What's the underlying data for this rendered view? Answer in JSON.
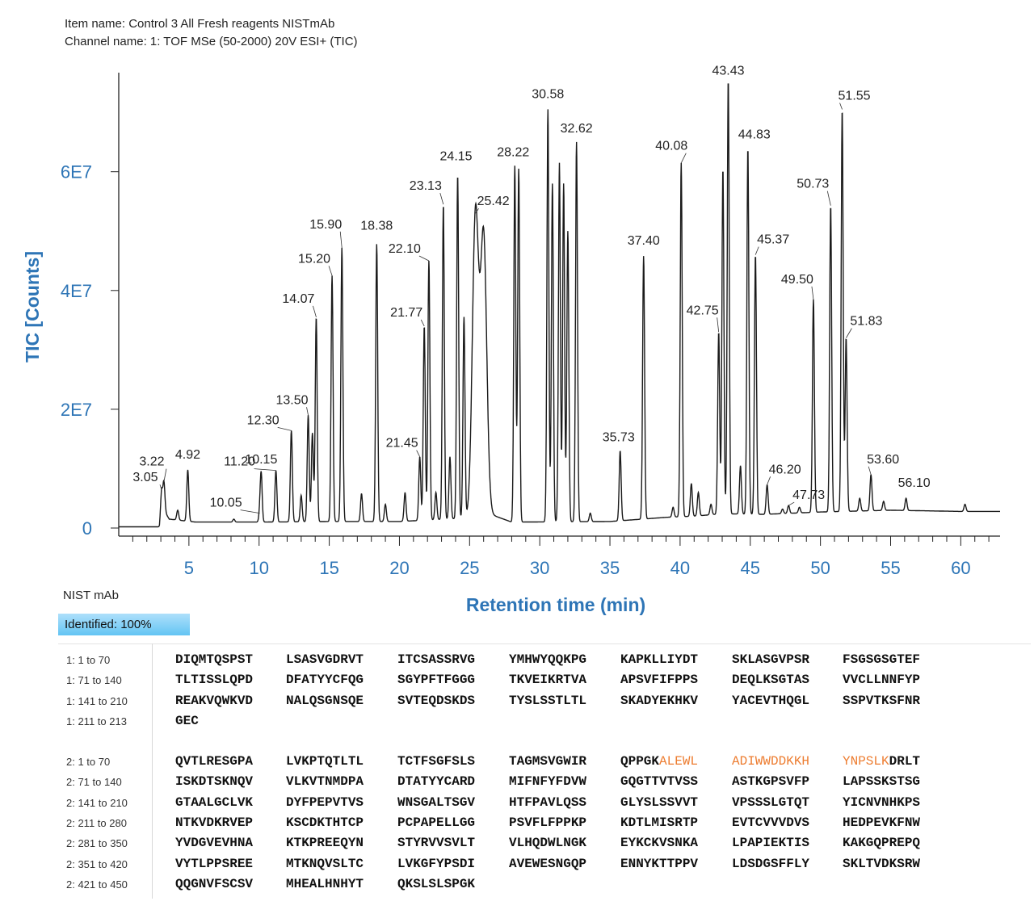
{
  "header": {
    "item_name": "Item name: Control 3 All Fresh reagents NISTmAb",
    "channel_name": "Channel name: 1: TOF MSe (50-2000) 20V ESI+ (TIC)"
  },
  "chart_data": {
    "type": "line",
    "title": "",
    "xlabel": "Retention time (min)",
    "ylabel": "TIC [Counts]",
    "xlim": [
      0,
      62.8
    ],
    "ylim": [
      0,
      76000000
    ],
    "x_ticks": [
      5,
      10,
      15,
      20,
      25,
      30,
      35,
      40,
      45,
      50,
      55,
      60
    ],
    "y_ticks": [
      {
        "value": 0,
        "label": "0"
      },
      {
        "value": 20000000,
        "label": "2E7"
      },
      {
        "value": 40000000,
        "label": "4E7"
      },
      {
        "value": 60000000,
        "label": "6E7"
      }
    ],
    "baseline": [
      [
        0,
        200000
      ],
      [
        2.9,
        200000
      ],
      [
        3.05,
        3600000
      ],
      [
        3.6,
        1500000
      ],
      [
        5.5,
        1000000
      ],
      [
        10,
        1000000
      ],
      [
        15,
        1100000
      ],
      [
        20,
        1100000
      ],
      [
        25,
        1700000
      ],
      [
        26.5,
        2300000
      ],
      [
        28,
        1000000
      ],
      [
        35,
        1100000
      ],
      [
        39,
        1800000
      ],
      [
        41,
        2000000
      ],
      [
        43,
        2400000
      ],
      [
        46,
        2300000
      ],
      [
        50,
        2700000
      ],
      [
        55,
        3000000
      ],
      [
        60,
        2800000
      ],
      [
        62.8,
        2800000
      ]
    ],
    "peaks": [
      {
        "rt": 3.05,
        "counts": 6500000,
        "label": "3.05"
      },
      {
        "rt": 3.22,
        "counts": 7800000,
        "label": "3.22"
      },
      {
        "rt": 4.2,
        "counts": 3000000,
        "label": ""
      },
      {
        "rt": 4.92,
        "counts": 9800000,
        "label": "4.92"
      },
      {
        "rt": 8.2,
        "counts": 1500000,
        "label": ""
      },
      {
        "rt": 10.05,
        "counts": 2500000,
        "label": "10.05"
      },
      {
        "rt": 10.15,
        "counts": 9000000,
        "label": "10.15"
      },
      {
        "rt": 11.2,
        "counts": 9700000,
        "label": "11.20"
      },
      {
        "rt": 12.3,
        "counts": 16400000,
        "label": "12.30"
      },
      {
        "rt": 13.0,
        "counts": 5500000,
        "label": ""
      },
      {
        "rt": 13.5,
        "counts": 19000000,
        "label": "13.50"
      },
      {
        "rt": 13.8,
        "counts": 16000000,
        "label": ""
      },
      {
        "rt": 14.07,
        "counts": 35500000,
        "label": "14.07"
      },
      {
        "rt": 15.2,
        "counts": 42500000,
        "label": "15.20"
      },
      {
        "rt": 15.9,
        "counts": 47200000,
        "label": "15.90"
      },
      {
        "rt": 17.3,
        "counts": 5800000,
        "label": ""
      },
      {
        "rt": 18.38,
        "counts": 47800000,
        "label": "18.38"
      },
      {
        "rt": 19.0,
        "counts": 4000000,
        "label": ""
      },
      {
        "rt": 20.4,
        "counts": 6000000,
        "label": ""
      },
      {
        "rt": 21.45,
        "counts": 12000000,
        "label": "21.45"
      },
      {
        "rt": 21.77,
        "counts": 34000000,
        "label": "21.77"
      },
      {
        "rt": 22.1,
        "counts": 45000000,
        "label": "22.10"
      },
      {
        "rt": 22.6,
        "counts": 6000000,
        "label": ""
      },
      {
        "rt": 23.13,
        "counts": 54500000,
        "label": "23.13"
      },
      {
        "rt": 23.6,
        "counts": 12000000,
        "label": ""
      },
      {
        "rt": 24.15,
        "counts": 59500000,
        "label": "24.15"
      },
      {
        "rt": 24.6,
        "counts": 35500000,
        "label": ""
      },
      {
        "rt": 25.42,
        "counts": 53000000,
        "label": "25.42"
      },
      {
        "rt": 26.0,
        "counts": 49000000,
        "label": ""
      },
      {
        "rt": 28.22,
        "counts": 61000000,
        "label": "28.22"
      },
      {
        "rt": 28.5,
        "counts": 60500000,
        "label": ""
      },
      {
        "rt": 30.58,
        "counts": 70500000,
        "label": "30.58"
      },
      {
        "rt": 30.9,
        "counts": 58000000,
        "label": ""
      },
      {
        "rt": 31.4,
        "counts": 61500000,
        "label": ""
      },
      {
        "rt": 31.7,
        "counts": 58000000,
        "label": ""
      },
      {
        "rt": 32.0,
        "counts": 50000000,
        "label": ""
      },
      {
        "rt": 32.62,
        "counts": 65000000,
        "label": "32.62"
      },
      {
        "rt": 33.6,
        "counts": 2500000,
        "label": ""
      },
      {
        "rt": 35.73,
        "counts": 13000000,
        "label": "35.73"
      },
      {
        "rt": 37.4,
        "counts": 45800000,
        "label": "37.40"
      },
      {
        "rt": 39.5,
        "counts": 3500000,
        "label": ""
      },
      {
        "rt": 40.08,
        "counts": 61500000,
        "label": "40.08"
      },
      {
        "rt": 40.8,
        "counts": 7500000,
        "label": ""
      },
      {
        "rt": 41.3,
        "counts": 6000000,
        "label": ""
      },
      {
        "rt": 42.2,
        "counts": 4000000,
        "label": ""
      },
      {
        "rt": 42.75,
        "counts": 33000000,
        "label": "42.75"
      },
      {
        "rt": 43.05,
        "counts": 60500000,
        "label": ""
      },
      {
        "rt": 43.43,
        "counts": 75500000,
        "label": "43.43"
      },
      {
        "rt": 44.3,
        "counts": 10500000,
        "label": ""
      },
      {
        "rt": 44.83,
        "counts": 64000000,
        "label": "44.83"
      },
      {
        "rt": 45.37,
        "counts": 46000000,
        "label": "45.37"
      },
      {
        "rt": 46.2,
        "counts": 7300000,
        "label": "46.20"
      },
      {
        "rt": 47.3,
        "counts": 3200000,
        "label": ""
      },
      {
        "rt": 47.73,
        "counts": 3800000,
        "label": "47.73"
      },
      {
        "rt": 48.5,
        "counts": 3500000,
        "label": ""
      },
      {
        "rt": 49.5,
        "counts": 38500000,
        "label": "49.50"
      },
      {
        "rt": 50.73,
        "counts": 54300000,
        "label": "50.73"
      },
      {
        "rt": 51.55,
        "counts": 70500000,
        "label": "51.55"
      },
      {
        "rt": 51.83,
        "counts": 32000000,
        "label": "51.83"
      },
      {
        "rt": 52.8,
        "counts": 5000000,
        "label": ""
      },
      {
        "rt": 53.6,
        "counts": 9000000,
        "label": "53.60"
      },
      {
        "rt": 54.5,
        "counts": 4500000,
        "label": ""
      },
      {
        "rt": 56.1,
        "counts": 5000000,
        "label": "56.10"
      },
      {
        "rt": 60.3,
        "counts": 4000000,
        "label": ""
      }
    ]
  },
  "sequence": {
    "title": "NIST mAb",
    "identified": "Identified: 100%",
    "chain1": [
      {
        "label": "1: 1 to 70",
        "segments": [
          {
            "t": "DIQMTQSPST"
          },
          {
            "t": "LSASVGDRVT"
          },
          {
            "t": "ITCSASSRVG"
          },
          {
            "t": "YMHWYQQKPG"
          },
          {
            "t": "KAPKLLIYDT"
          },
          {
            "t": "SKLASGVPSR"
          },
          {
            "t": "FSGSGSGTEF"
          }
        ]
      },
      {
        "label": "1: 71 to 140",
        "segments": [
          {
            "t": "TLTISSLQPD"
          },
          {
            "t": "DFATYYCFQG"
          },
          {
            "t": "SGYPFTFGGG"
          },
          {
            "t": "TKVEIKRTVA"
          },
          {
            "t": "APSVFIFPPS"
          },
          {
            "t": "DEQLKSGTAS"
          },
          {
            "t": "VVCLLNNFYP"
          }
        ]
      },
      {
        "label": "1: 141 to 210",
        "segments": [
          {
            "t": "REAKVQWKVD"
          },
          {
            "t": "NALQSGNSQE"
          },
          {
            "t": "SVTEQDSKDS"
          },
          {
            "t": "TYSLSSTLTL"
          },
          {
            "t": "SKADYEKHKV"
          },
          {
            "t": "YACEVTHQGL"
          },
          {
            "t": "SSPVTKSFNR"
          }
        ]
      },
      {
        "label": "1: 211 to 213",
        "segments": [
          {
            "t": "GEC"
          }
        ]
      }
    ],
    "chain2": [
      {
        "label": "2: 1 to 70",
        "segments": [
          {
            "t": "QVTLRESGPA"
          },
          {
            "t": "LVKPTQTLTL"
          },
          {
            "t": "TCTFSGFSLS"
          },
          {
            "t": "TAGMSVGWIR"
          },
          {
            "t": "QPPGK",
            "h": "ALEWL"
          },
          {
            "h": "ADIWWDDKKH"
          },
          {
            "h": "YNPSLK",
            "t": "DRLT"
          }
        ]
      },
      {
        "label": "2: 71 to 140",
        "segments": [
          {
            "t": "ISKDTSKNQV"
          },
          {
            "t": "VLKVTNMDPA"
          },
          {
            "t": "DTATYYCARD"
          },
          {
            "t": "MIFNFYFDVW"
          },
          {
            "t": "GQGTTVTVSS"
          },
          {
            "t": "ASTKGPSVFP"
          },
          {
            "t": "LAPSSKSTSG"
          }
        ]
      },
      {
        "label": "2: 141 to 210",
        "segments": [
          {
            "t": "GTAALGCLVK"
          },
          {
            "t": "DYFPEPVTVS"
          },
          {
            "t": "WNSGALTSGV"
          },
          {
            "t": "HTFPAVLQSS"
          },
          {
            "t": "GLYSLSSVVT"
          },
          {
            "t": "VPSSSLGTQT"
          },
          {
            "t": "YICNVNHKPS"
          }
        ]
      },
      {
        "label": "2: 211 to 280",
        "segments": [
          {
            "t": "NTKVDKRVEP"
          },
          {
            "t": "KSCDKTHTCP"
          },
          {
            "t": "PCPAPELLGG"
          },
          {
            "t": "PSVFLFPPKP"
          },
          {
            "t": "KDTLMISRTP"
          },
          {
            "t": "EVTCVVVDVS"
          },
          {
            "t": "HEDPEVKFNW"
          }
        ]
      },
      {
        "label": "2: 281 to 350",
        "segments": [
          {
            "t": "YVDGVEVHNA"
          },
          {
            "t": "KTKPREEQYN"
          },
          {
            "t": "STYRVVSVLT"
          },
          {
            "t": "VLHQDWLNGK"
          },
          {
            "t": "EYKCKVSNKA"
          },
          {
            "t": "LPAPIEKTIS"
          },
          {
            "t": "KAKGQPREPQ"
          }
        ]
      },
      {
        "label": "2: 351 to 420",
        "segments": [
          {
            "t": "VYTLPPSREE"
          },
          {
            "t": "MTKNQVSLTC"
          },
          {
            "t": "LVKGFYPSDI"
          },
          {
            "t": "AVEWESNGQP"
          },
          {
            "t": "ENNYKTTPPV"
          },
          {
            "t": "LDSDGSFFLY"
          },
          {
            "t": "SKLTVDKSRW"
          }
        ]
      },
      {
        "label": "2: 421 to 450",
        "segments": [
          {
            "t": "QQGNVFSCSV"
          },
          {
            "t": "MHEALHNHYT"
          },
          {
            "t": "QKSLSLSPGK"
          }
        ]
      }
    ]
  }
}
